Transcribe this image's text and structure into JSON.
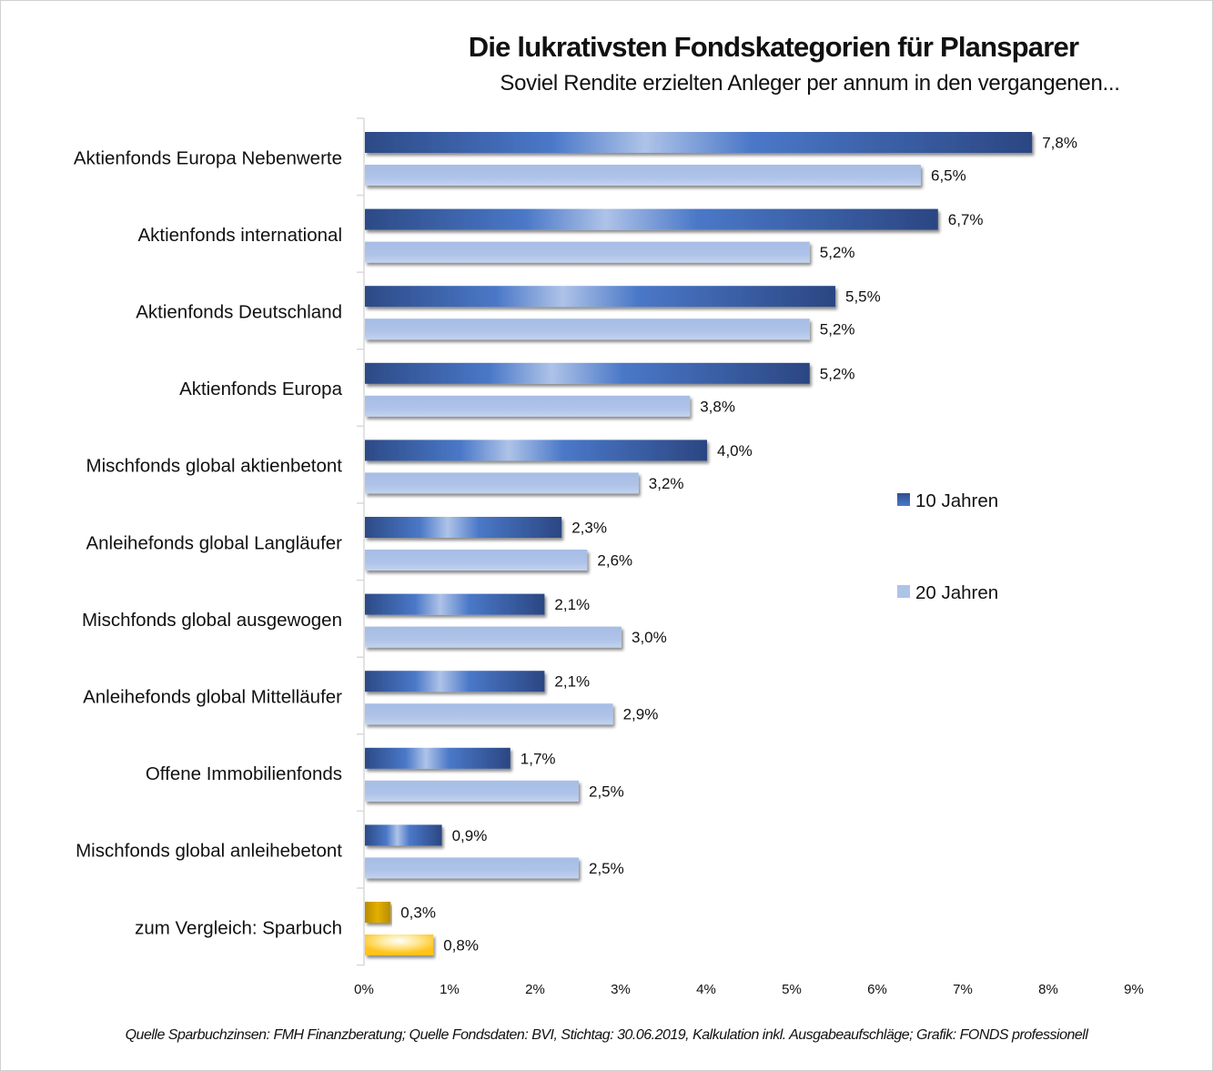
{
  "chart_data": {
    "type": "bar",
    "orientation": "horizontal",
    "title": "Die lukrativsten Fondskategorien für Plansparer",
    "subtitle": "Soviel Rendite erzielten Anleger per annum in den vergangenen...",
    "xlabel": "",
    "ylabel": "",
    "xlim": [
      0,
      9
    ],
    "x_ticks": [
      "0%",
      "1%",
      "2%",
      "3%",
      "4%",
      "5%",
      "6%",
      "7%",
      "8%",
      "9%"
    ],
    "grid": false,
    "legend_position": "right",
    "categories": [
      "Aktienfonds Europa Nebenwerte",
      "Aktienfonds international",
      "Aktienfonds Deutschland",
      "Aktienfonds Europa",
      "Mischfonds global aktienbetont",
      "Anleihefonds global Langläufer",
      "Mischfonds global ausgewogen",
      "Anleihefonds global Mittelläufer",
      "Offene Immobilienfonds",
      "Mischfonds global anleihebetont",
      "zum  Vergleich: Sparbuch"
    ],
    "series": [
      {
        "name": "10 Jahren",
        "values": [
          7.8,
          6.7,
          5.5,
          5.2,
          4.0,
          2.3,
          2.1,
          2.1,
          1.7,
          0.9,
          0.3
        ],
        "labels": [
          "7,8%",
          "6,7%",
          "5,5%",
          "5,2%",
          "4,0%",
          "2,3%",
          "2,1%",
          "2,1%",
          "1,7%",
          "0,9%",
          "0,3%"
        ],
        "color": "#2f4f8f",
        "highlight_color": "#4472c4"
      },
      {
        "name": "20 Jahren",
        "values": [
          6.5,
          5.2,
          5.2,
          3.8,
          3.2,
          2.6,
          3.0,
          2.9,
          2.5,
          2.5,
          0.8
        ],
        "labels": [
          "6,5%",
          "5,2%",
          "5,2%",
          "3,8%",
          "3,2%",
          "2,6%",
          "3,0%",
          "2,9%",
          "2,5%",
          "2,5%",
          "0,8%"
        ],
        "color": "#aec3e8"
      }
    ],
    "comparison_colors": {
      "10 Jahren": "#c89b00",
      "20 Jahren": "#ffc81e"
    }
  },
  "footer": {
    "source": "Quelle Sparbuchzinsen: FMH Finanzberatung; Quelle Fondsdaten: BVI, Stichtag: 30.06.2019, Kalkulation inkl. Ausgabeaufschläge; Grafik: FONDS professionell"
  }
}
